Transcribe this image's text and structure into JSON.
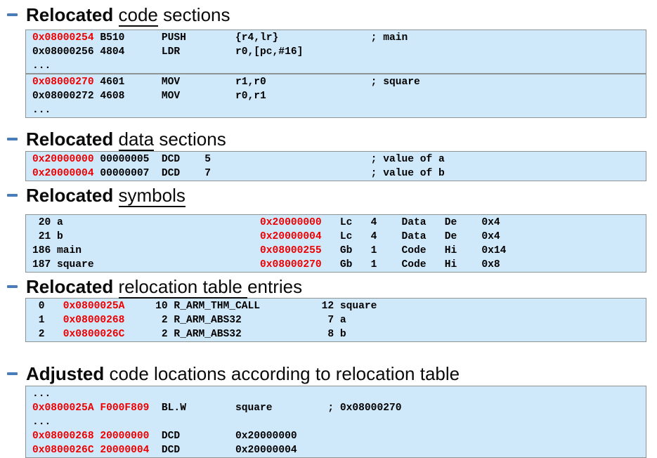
{
  "slide": {
    "colors": {
      "code_block_background": "#cfe9fa",
      "code_block_border": "#8e9394",
      "address_red": "#ee0000",
      "bullet_blue": "#4a7cba",
      "text_black": "#0a0a0a"
    },
    "bullet_icon": "dash-bullet",
    "sections": [
      {
        "id": "relocated-code-sections",
        "title": [
          {
            "t": "Relocated ",
            "b": true
          },
          {
            "t": "code",
            "u": true
          },
          {
            "t": " sections"
          }
        ],
        "blocks": [
          {
            "lines": [
              [
                {
                  "t": "0x08000254",
                  "r": true
                },
                {
                  "t": " B510      PUSH        {r4,lr}               ; main"
                }
              ],
              [
                {
                  "t": "0x08000256 4804      LDR         r0,[pc,#16]"
                }
              ],
              [
                {
                  "t": "..."
                }
              ]
            ]
          },
          {
            "lines": [
              [
                {
                  "t": "0x08000270",
                  "r": true
                },
                {
                  "t": " 4601      MOV         r1,r0                 ; square"
                }
              ],
              [
                {
                  "t": "0x08000272 4608      MOV         r0,r1"
                }
              ],
              [
                {
                  "t": "..."
                }
              ]
            ]
          }
        ]
      },
      {
        "id": "relocated-data-sections",
        "title": [
          {
            "t": "Relocated ",
            "b": true
          },
          {
            "t": "data",
            "u": true
          },
          {
            "t": " sections"
          }
        ],
        "blocks": [
          {
            "lines": [
              [
                {
                  "t": "0x20000000",
                  "r": true
                },
                {
                  "t": " 00000005  DCD    5                          ; value of a"
                }
              ],
              [
                {
                  "t": "0x20000004",
                  "r": true
                },
                {
                  "t": " 00000007  DCD    7                          ; value of b"
                }
              ]
            ]
          }
        ]
      },
      {
        "id": "relocated-symbols",
        "title": [
          {
            "t": "Relocated ",
            "b": true
          },
          {
            "t": "symbols",
            "u": true
          }
        ],
        "blocks": [
          {
            "lines": [
              [
                {
                  "t": " 20 a                                "
                },
                {
                  "t": "0x20000000",
                  "r": true
                },
                {
                  "t": "   Lc   4    Data   De    0x4"
                }
              ],
              [
                {
                  "t": " 21 b                                "
                },
                {
                  "t": "0x20000004",
                  "r": true
                },
                {
                  "t": "   Lc   4    Data   De    0x4"
                }
              ],
              [
                {
                  "t": "186 main                             "
                },
                {
                  "t": "0x08000255",
                  "r": true
                },
                {
                  "t": "   Gb   1    Code   Hi    0x14"
                }
              ],
              [
                {
                  "t": "187 square                           "
                },
                {
                  "t": "0x08000270",
                  "r": true
                },
                {
                  "t": "   Gb   1    Code   Hi    0x8"
                }
              ]
            ]
          }
        ]
      },
      {
        "id": "relocated-relocation-table-entries",
        "title": [
          {
            "t": "Relocated ",
            "b": true
          },
          {
            "t": "relocation table ",
            "u": true
          },
          {
            "t": "entries"
          }
        ],
        "blocks": [
          {
            "lines": [
              [
                {
                  "t": " 0   "
                },
                {
                  "t": "0x0800025A",
                  "r": true
                },
                {
                  "t": "     10 R_ARM_THM_CALL          12 square"
                }
              ],
              [
                {
                  "t": " 1   "
                },
                {
                  "t": "0x08000268",
                  "r": true
                },
                {
                  "t": "      2 R_ARM_ABS32              7 a"
                }
              ],
              [
                {
                  "t": " 2   "
                },
                {
                  "t": "0x0800026C",
                  "r": true
                },
                {
                  "t": "      2 R_ARM_ABS32              8 b"
                }
              ]
            ]
          }
        ]
      },
      {
        "id": "adjusted-code-locations",
        "title": [
          {
            "t": "Adjusted ",
            "b": true
          },
          {
            "t": "code locations according to relocation table"
          }
        ],
        "blocks": [
          {
            "lines": [
              [
                {
                  "t": "..."
                }
              ],
              [
                {
                  "t": "0x0800025A F000F809",
                  "r": true
                },
                {
                  "t": "  BL.W        square         ; 0x08000270"
                }
              ],
              [
                {
                  "t": "..."
                }
              ],
              [
                {
                  "t": "0x08000268 20000000",
                  "r": true
                },
                {
                  "t": "  DCD         0x20000000"
                }
              ],
              [
                {
                  "t": "0x0800026C 20000004",
                  "r": true
                },
                {
                  "t": "  DCD         0x20000004"
                }
              ]
            ]
          }
        ]
      }
    ]
  }
}
